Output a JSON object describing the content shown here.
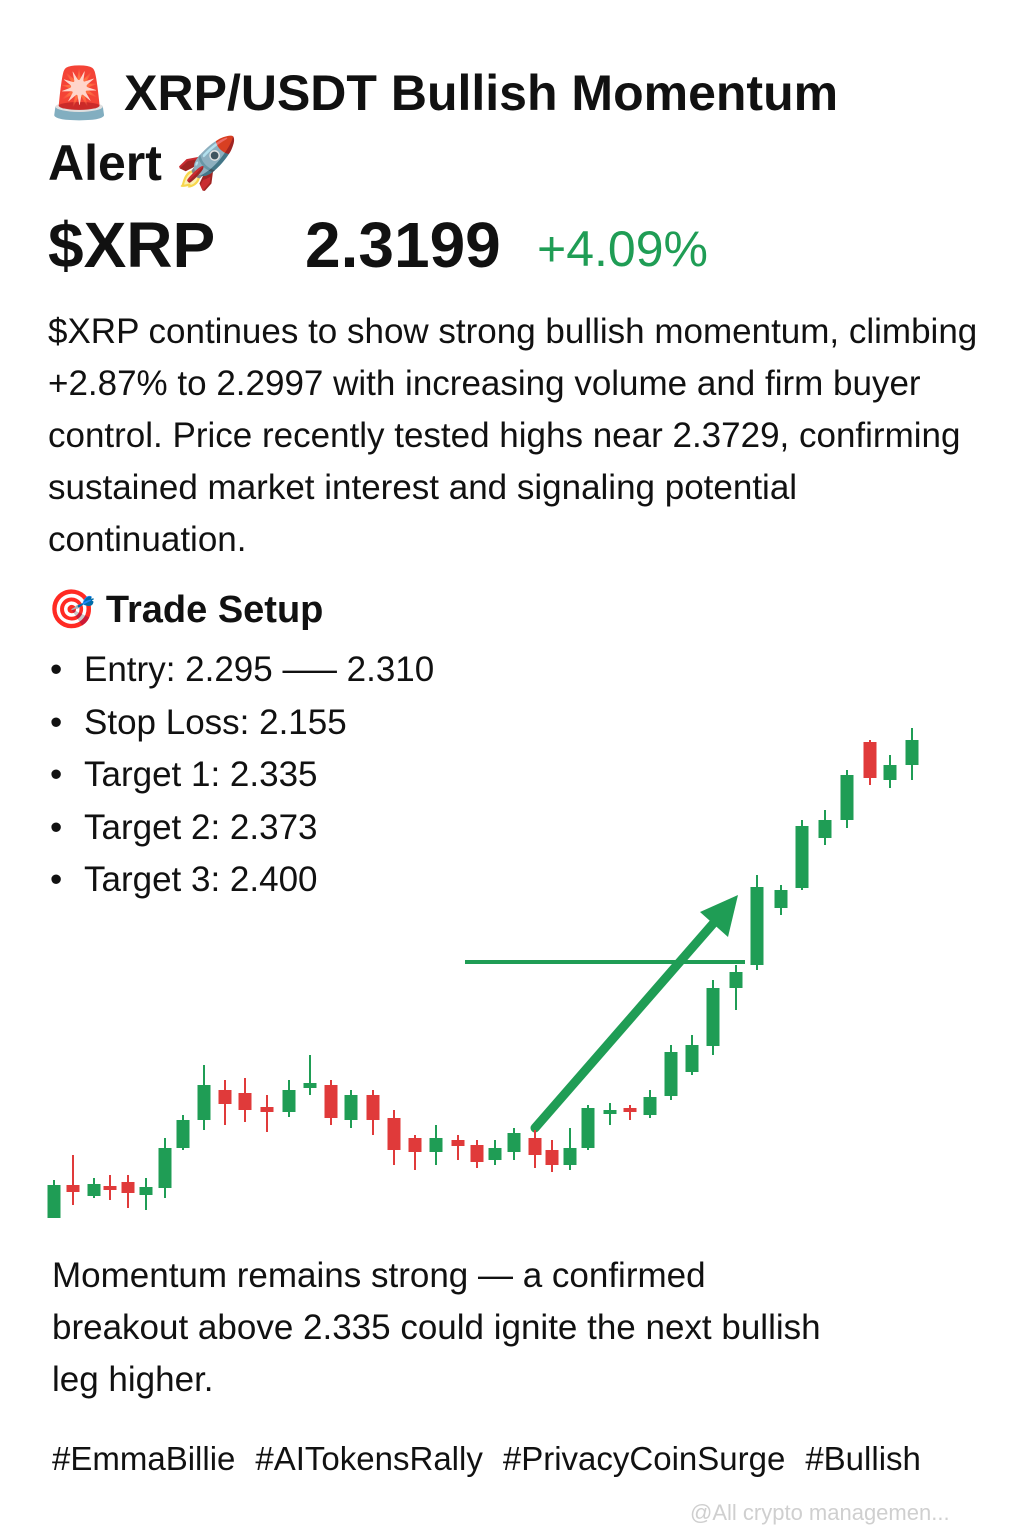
{
  "post": {
    "title": "🚨 XRP/USDT Bullish Momentum Alert 🚀",
    "ticker": "$XRP",
    "price": "2.3199",
    "change": "+4.09%",
    "description": "$XRP continues to show strong bullish momentum, climbing +2.87% to 2.2997 with increasing volume and firm buyer control. Price recently tested highs near 2.3729, confirming sustained market interest and signaling potential continuation.",
    "setup_heading": "🎯 Trade Setup",
    "setup_items": [
      "Entry: 2.295 —– 2.310",
      "Stop Loss: 2.155",
      "Target 1: 2.335",
      "Target 2: 2.373",
      "Target 3: 2.400"
    ],
    "conclusion": "Momentum remains strong — a confirmed breakout above 2.335 could ignite the next bullish leg higher.",
    "hashtags": [
      "#EmmaBillie",
      "#AITokensRally",
      "#PrivacyCoinSurge",
      "#Bullish"
    ],
    "watermark": "@All crypto managemen..."
  }
}
